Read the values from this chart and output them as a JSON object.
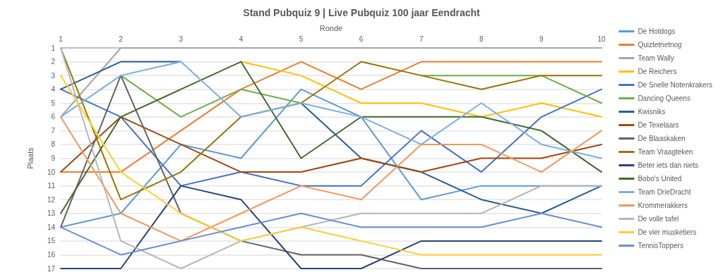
{
  "chart_data": {
    "type": "line",
    "title": "Stand Pubquiz 9 | Live Pubquiz 100 jaar Eendracht",
    "xlabel": "Ronde",
    "ylabel": "Plaats",
    "categories": [
      "1",
      "2",
      "3",
      "4",
      "5",
      "6",
      "7",
      "8",
      "9",
      "10"
    ],
    "ylim": [
      17,
      1
    ],
    "yticks": [
      1,
      2,
      3,
      4,
      5,
      6,
      7,
      8,
      9,
      10,
      11,
      12,
      13,
      14,
      15,
      16,
      17
    ],
    "grid": "y",
    "legend": "right",
    "marker": "none",
    "line_style": "solid",
    "series": [
      {
        "name": "De Hotdogs",
        "color": "#5b9bd5",
        "values": [
          14,
          13,
          8,
          9,
          4,
          6,
          12,
          11,
          11,
          11
        ]
      },
      {
        "name": "Quiztetnetnog",
        "color": "#ed7d31",
        "values": [
          10,
          10,
          7,
          4,
          2,
          4,
          2,
          2,
          2,
          2
        ]
      },
      {
        "name": "Team Wally",
        "color": "#a5a5a5",
        "values": [
          6,
          1,
          1,
          1,
          1,
          1,
          1,
          1,
          1,
          1
        ]
      },
      {
        "name": "De Reichers",
        "color": "#ffc000",
        "values": [
          null,
          null,
          null,
          2,
          3,
          5,
          5,
          6,
          5,
          6
        ]
      },
      {
        "name": "De Snelle Notenkrakers",
        "color": "#4472c4",
        "values": [
          4,
          6,
          11,
          10,
          11,
          11,
          7,
          10,
          6,
          4
        ]
      },
      {
        "name": "Dancing Queens",
        "color": "#70ad47",
        "values": [
          null,
          3,
          6,
          4,
          5,
          null,
          3,
          3,
          3,
          5
        ]
      },
      {
        "name": "Kwisniks",
        "color": "#255e91",
        "values": [
          4,
          2,
          2,
          null,
          5,
          9,
          10,
          12,
          13,
          11
        ]
      },
      {
        "name": "De Texelaars",
        "color": "#9e480e",
        "values": [
          10,
          6,
          8,
          10,
          10,
          9,
          10,
          9,
          9,
          8
        ]
      },
      {
        "name": "De Blaaskaken",
        "color": "#636363",
        "values": [
          14,
          3,
          13,
          15,
          16,
          16,
          17,
          17,
          17,
          17
        ]
      },
      {
        "name": "Team Vraagteken",
        "color": "#997300",
        "values": [
          1,
          12,
          10,
          6,
          5,
          2,
          3,
          4,
          3,
          3
        ]
      },
      {
        "name": "Beter iets dan niets",
        "color": "#264478",
        "values": [
          17,
          17,
          11,
          12,
          17,
          17,
          15,
          15,
          15,
          15
        ]
      },
      {
        "name": "Bobo's United",
        "color": "#43682b",
        "values": [
          13,
          6,
          4,
          2,
          9,
          6,
          6,
          6,
          7,
          10
        ]
      },
      {
        "name": "Team DrieDracht",
        "color": "#7cafdd",
        "values": [
          6,
          3,
          2,
          6,
          5,
          6,
          8,
          5,
          8,
          9
        ]
      },
      {
        "name": "Krommerakkers",
        "color": "#f1975a",
        "values": [
          6,
          13,
          15,
          13,
          11,
          12,
          8,
          8,
          10,
          7
        ]
      },
      {
        "name": "De volle tafel",
        "color": "#b7b7b7",
        "values": [
          1,
          15,
          17,
          15,
          14,
          13,
          13,
          13,
          11,
          11
        ]
      },
      {
        "name": "De vier musketiers",
        "color": "#ffcd33",
        "values": [
          3,
          10,
          13,
          15,
          14,
          15,
          16,
          16,
          16,
          16
        ]
      },
      {
        "name": "TennisToppers",
        "color": "#698ed0",
        "values": [
          14,
          16,
          15,
          14,
          13,
          14,
          14,
          14,
          13,
          14
        ]
      }
    ]
  }
}
